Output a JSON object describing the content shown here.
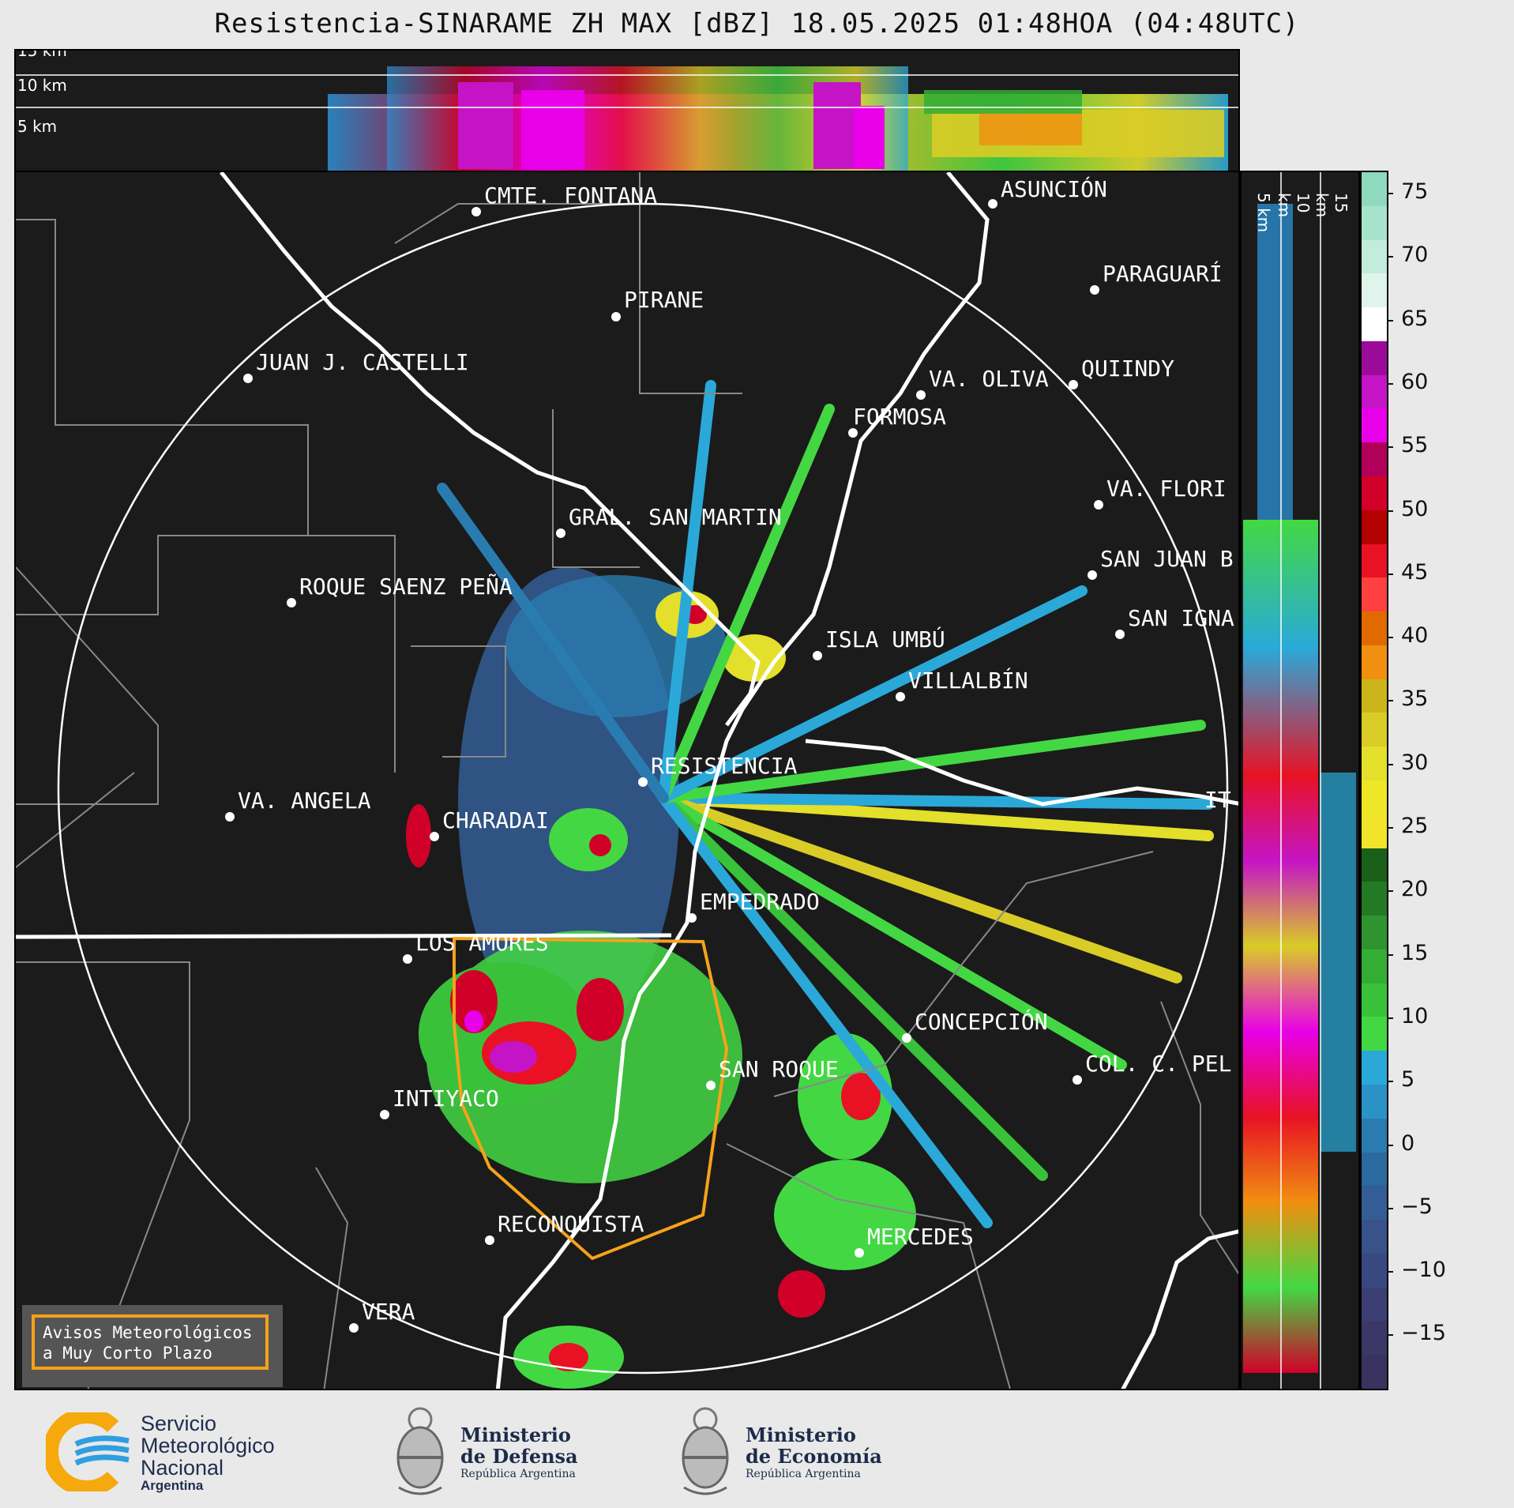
{
  "title": "Resistencia-SINARAME ZH MAX [dBZ] 18.05.2025 01:48HOA (04:48UTC)",
  "top_panel": {
    "km_labels": [
      "15 km",
      "10 km",
      "5 km"
    ]
  },
  "side_panel": {
    "km_labels": [
      "5 km",
      "10 km",
      "15 km"
    ]
  },
  "cities": [
    {
      "name": "CMTE. FONTANA"
    },
    {
      "name": "ASUNCIÓN"
    },
    {
      "name": "PARAGUARÍ"
    },
    {
      "name": "PIRANE"
    },
    {
      "name": "JUAN J. CASTELLI"
    },
    {
      "name": "VA. OLIVA"
    },
    {
      "name": "QUIINDY"
    },
    {
      "name": "FORMOSA"
    },
    {
      "name": "VA. FLORI"
    },
    {
      "name": "GRAL. SAN MARTIN"
    },
    {
      "name": "SAN JUAN B"
    },
    {
      "name": "ROQUE SAENZ PEÑA"
    },
    {
      "name": "SAN IGNA"
    },
    {
      "name": "ISLA UMBÚ"
    },
    {
      "name": "VILLALBÍN"
    },
    {
      "name": "RESISTENCIA"
    },
    {
      "name": "IT"
    },
    {
      "name": "VA. ANGELA"
    },
    {
      "name": "CHARADAI"
    },
    {
      "name": "EMPEDRADO"
    },
    {
      "name": "LOS AMORES"
    },
    {
      "name": "CONCEPCIÓN"
    },
    {
      "name": "SAN ROQUE"
    },
    {
      "name": "COL. C. PEL"
    },
    {
      "name": "INTIYACO"
    },
    {
      "name": "RECONQUISTA"
    },
    {
      "name": "MERCEDES"
    },
    {
      "name": "VERA"
    }
  ],
  "colorbar": {
    "ticks": [
      "75",
      "70",
      "65",
      "60",
      "55",
      "50",
      "45",
      "40",
      "35",
      "30",
      "25",
      "20",
      "15",
      "10",
      "5",
      "0",
      "−5",
      "−10",
      "−15"
    ],
    "segments": [
      "#8fd9bf",
      "#a7e3cc",
      "#c2ecdb",
      "#dff4ea",
      "#ffffff",
      "#9b0b9a",
      "#c514c5",
      "#e800e8",
      "#b0005a",
      "#d10029",
      "#b30000",
      "#e81224",
      "#ff4040",
      "#e06a00",
      "#f08f10",
      "#cbb51a",
      "#d9cc26",
      "#e3df2b",
      "#ede728",
      "#f0e52b",
      "#1a5f1a",
      "#247a24",
      "#2f942f",
      "#34ad34",
      "#39c239",
      "#43d843",
      "#2aa9d9",
      "#2b92c7",
      "#2a7cb0",
      "#2a6a9e",
      "#335d94",
      "#38528a",
      "#3a4880",
      "#3c3f74",
      "#3b3868",
      "#3a325e"
    ],
    "unit": "dBZ"
  },
  "aviso": {
    "line1": "Avisos Meteorológicos",
    "line2": "a Muy Corto Plazo"
  },
  "footer": {
    "smn": {
      "line1": "Servicio",
      "line2": "Meteorológico",
      "line3": "Nacional",
      "line4": "Argentina"
    },
    "defensa": {
      "line1": "Ministerio",
      "line2": "de Defensa",
      "line3": "República Argentina"
    },
    "economia": {
      "line1": "Ministerio",
      "line2": "de Economía",
      "line3": "República Argentina"
    }
  }
}
